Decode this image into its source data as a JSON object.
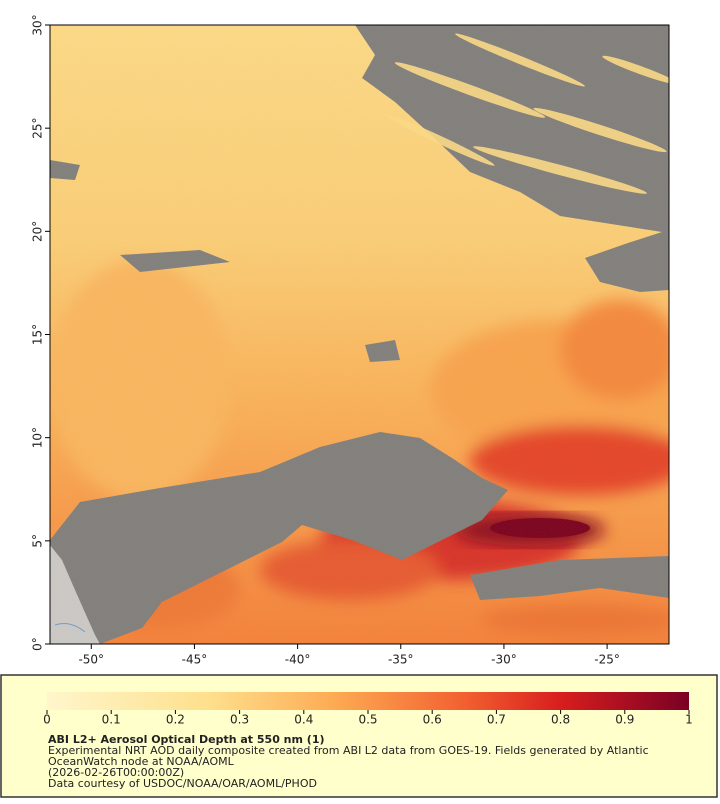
{
  "map": {
    "xlim": [
      -52,
      -22
    ],
    "ylim": [
      0,
      30
    ],
    "xticks": [
      {
        "value": -50,
        "label": "-50°"
      },
      {
        "value": -45,
        "label": "-45°"
      },
      {
        "value": -40,
        "label": "-40°"
      },
      {
        "value": -35,
        "label": "-35°"
      },
      {
        "value": -30,
        "label": "-30°"
      },
      {
        "value": -25,
        "label": "-25°"
      }
    ],
    "yticks": [
      {
        "value": 0,
        "label": "0°"
      },
      {
        "value": 5,
        "label": "5°"
      },
      {
        "value": 10,
        "label": "10°"
      },
      {
        "value": 15,
        "label": "15°"
      },
      {
        "value": 20,
        "label": "20°"
      },
      {
        "value": 25,
        "label": "25°"
      },
      {
        "value": 30,
        "label": "30°"
      }
    ]
  },
  "colorbar": {
    "lim": [
      0,
      1
    ],
    "ticks": [
      0,
      0.1,
      0.2,
      0.3,
      0.4,
      0.5,
      0.6,
      0.7,
      0.8,
      0.9,
      1
    ]
  },
  "caption": {
    "title": "ABI L2+ Aerosol Optical Depth at 550 nm (1)",
    "lines": [
      "Experimental NRT AOD daily composite created from ABI L2 data from GOES-19. Fields generated by Atlantic",
      "OceanWatch node at NOAA/AOML",
      "(2026-02-26T00:00:00Z)",
      "Data courtesy of USDOC/NOAA/OAR/AOML/PHOD"
    ]
  }
}
